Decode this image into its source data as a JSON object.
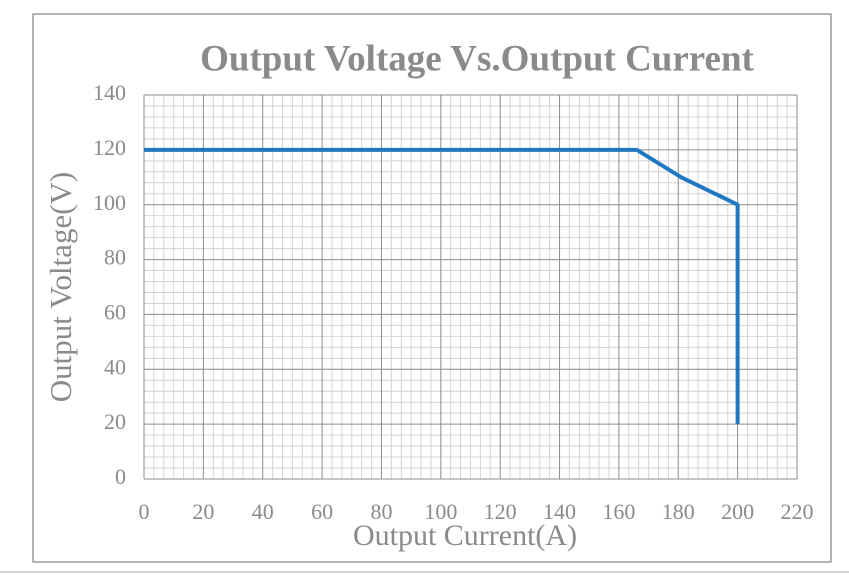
{
  "chart_data": {
    "type": "line",
    "title": "Output Voltage Vs.Output Current",
    "x_label": "Output Current(A)",
    "y_label": "Output Voltage(V)",
    "series": [
      {
        "name": "Output Voltage",
        "color": "#1f78c1",
        "x": [
          0,
          166,
          181,
          200,
          200
        ],
        "values": [
          120,
          120,
          110,
          100,
          20
        ]
      }
    ],
    "xlim": [
      0,
      220
    ],
    "xticks": [
      0,
      20,
      40,
      60,
      80,
      100,
      120,
      140,
      160,
      180,
      200,
      220
    ],
    "ylim": [
      0,
      140
    ],
    "yticks": [
      0,
      20,
      40,
      60,
      80,
      100,
      120,
      140
    ],
    "grid": true
  }
}
